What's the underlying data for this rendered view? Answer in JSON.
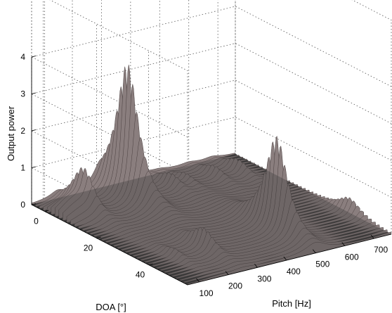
{
  "chart_data": {
    "type": "surface",
    "xlabel": "Pitch [Hz]",
    "ylabel": "DOA [°]",
    "zlabel": "Output power",
    "x_ticks": [
      "100",
      "200",
      "300",
      "400",
      "500",
      "600",
      "700"
    ],
    "y_ticks": [
      "0",
      "20",
      "40"
    ],
    "z_ticks": [
      "0",
      "1",
      "2",
      "3",
      "4"
    ],
    "xlim": [
      60,
      760
    ],
    "ylim": [
      -5,
      55
    ],
    "zlim": [
      0,
      4
    ],
    "grid": true,
    "floor_color": "#3a3a3a",
    "surface_color": "#8a7e7e",
    "peaks": [
      {
        "pitch": 150,
        "doa": 5,
        "power": 0.9
      },
      {
        "pitch": 300,
        "doa": 5,
        "power": 3.7
      },
      {
        "pitch": 450,
        "doa": 5,
        "power": 0.35
      },
      {
        "pitch": 600,
        "doa": 5,
        "power": 0.3
      },
      {
        "pitch": 680,
        "doa": 5,
        "power": 0.35
      },
      {
        "pitch": 500,
        "doa": 5,
        "power": 0.25
      },
      {
        "pitch": 250,
        "doa": 40,
        "power": 0.55
      },
      {
        "pitch": 500,
        "doa": 40,
        "power": 2.6
      },
      {
        "pitch": 150,
        "doa": 40,
        "power": 0.2
      },
      {
        "pitch": 750,
        "doa": 40,
        "power": 0.45
      }
    ]
  }
}
